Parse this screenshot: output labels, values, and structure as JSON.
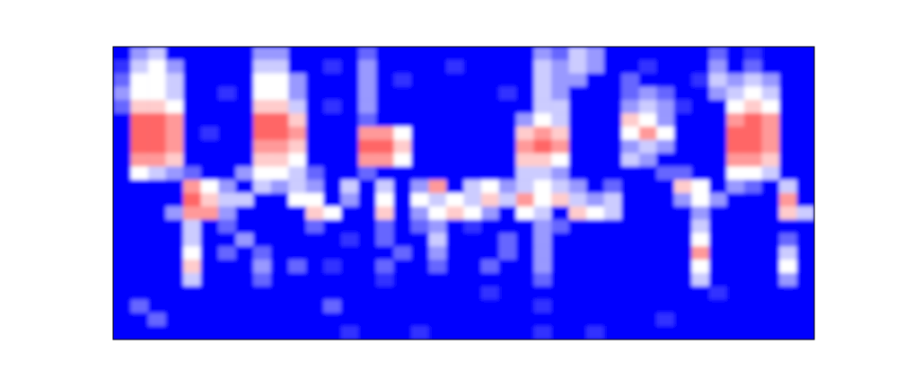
{
  "chart_data": {
    "type": "heatmap",
    "tick_labels": false,
    "clim": [
      0,
      10
    ],
    "cells": [
      [
        0,
        3,
        4,
        0,
        0,
        0,
        0,
        0,
        3,
        3,
        0,
        0,
        0,
        0,
        2,
        0,
        0,
        0,
        0,
        0,
        0,
        0,
        0,
        0,
        3,
        2,
        4,
        3,
        0,
        0,
        0,
        0,
        0,
        0,
        2,
        0,
        1,
        0,
        0,
        0
      ],
      [
        1,
        4,
        5,
        3,
        0,
        0,
        0,
        0,
        4,
        4,
        0,
        0,
        1,
        0,
        3,
        0,
        0,
        0,
        0,
        1,
        0,
        0,
        0,
        0,
        4,
        3,
        4,
        3,
        0,
        0,
        1,
        0,
        0,
        0,
        3,
        0,
        2,
        0,
        0,
        0
      ],
      [
        2,
        5,
        5,
        4,
        0,
        0,
        0,
        0,
        5,
        5,
        3,
        0,
        0,
        0,
        3,
        0,
        1,
        0,
        0,
        0,
        0,
        0,
        0,
        0,
        4,
        3,
        3,
        0,
        0,
        2,
        0,
        0,
        0,
        1,
        4,
        3,
        4,
        3,
        0,
        0
      ],
      [
        3,
        5,
        5,
        4,
        0,
        0,
        1,
        0,
        5,
        5,
        3,
        0,
        0,
        0,
        3,
        0,
        0,
        0,
        0,
        0,
        0,
        0,
        1,
        0,
        4,
        3,
        0,
        0,
        0,
        2,
        3,
        2,
        0,
        0,
        3,
        4,
        5,
        4,
        0,
        0
      ],
      [
        2,
        6,
        6,
        5,
        0,
        0,
        0,
        0,
        6,
        6,
        4,
        0,
        1,
        0,
        3,
        0,
        0,
        0,
        0,
        0,
        0,
        0,
        0,
        0,
        4,
        4,
        0,
        0,
        0,
        3,
        4,
        3,
        1,
        0,
        0,
        5,
        6,
        5,
        0,
        0
      ],
      [
        0,
        8,
        8,
        7,
        0,
        0,
        0,
        0,
        8,
        8,
        6,
        0,
        0,
        0,
        2,
        0,
        0,
        0,
        0,
        0,
        0,
        0,
        0,
        3,
        5,
        4,
        0,
        0,
        0,
        6,
        5,
        3,
        0,
        0,
        0,
        7,
        8,
        7,
        0,
        0
      ],
      [
        0,
        8,
        8,
        7,
        0,
        1,
        0,
        0,
        8,
        8,
        7,
        0,
        0,
        0,
        7,
        7,
        5,
        0,
        0,
        0,
        0,
        0,
        0,
        6,
        7,
        6,
        0,
        0,
        0,
        5,
        7,
        5,
        0,
        0,
        0,
        8,
        8,
        7,
        0,
        0
      ],
      [
        0,
        8,
        8,
        7,
        0,
        0,
        0,
        0,
        7,
        7,
        6,
        0,
        0,
        0,
        8,
        8,
        6,
        0,
        0,
        0,
        0,
        0,
        0,
        7,
        8,
        7,
        0,
        0,
        0,
        3,
        4,
        3,
        0,
        0,
        0,
        8,
        8,
        7,
        0,
        0
      ],
      [
        0,
        7,
        7,
        6,
        0,
        0,
        0,
        0,
        6,
        6,
        5,
        0,
        0,
        0,
        7,
        7,
        5,
        0,
        0,
        0,
        0,
        0,
        0,
        6,
        6,
        5,
        0,
        0,
        0,
        4,
        3,
        0,
        0,
        0,
        0,
        7,
        7,
        6,
        0,
        0
      ],
      [
        0,
        5,
        4,
        3,
        2,
        0,
        0,
        3,
        5,
        5,
        4,
        2,
        0,
        0,
        2,
        0,
        0,
        0,
        0,
        0,
        0,
        0,
        0,
        4,
        4,
        3,
        0,
        0,
        0,
        0,
        0,
        2,
        2,
        0,
        0,
        5,
        5,
        4,
        0,
        0
      ],
      [
        0,
        0,
        0,
        0,
        7,
        5,
        3,
        0,
        4,
        3,
        4,
        3,
        0,
        4,
        0,
        4,
        0,
        3,
        7,
        0,
        4,
        5,
        3,
        4,
        5,
        4,
        3,
        0,
        2,
        0,
        0,
        0,
        6,
        5,
        0,
        3,
        2,
        0,
        4,
        0
      ],
      [
        0,
        0,
        0,
        0,
        8,
        6,
        4,
        4,
        0,
        0,
        5,
        5,
        0,
        3,
        0,
        5,
        0,
        5,
        4,
        5,
        4,
        6,
        4,
        7,
        5,
        6,
        4,
        3,
        4,
        0,
        0,
        0,
        3,
        5,
        3,
        0,
        0,
        0,
        7,
        0
      ],
      [
        0,
        0,
        0,
        3,
        7,
        7,
        3,
        0,
        0,
        0,
        0,
        6,
        5,
        0,
        0,
        6,
        0,
        3,
        5,
        6,
        5,
        3,
        0,
        5,
        4,
        0,
        6,
        5,
        4,
        0,
        0,
        0,
        0,
        3,
        0,
        0,
        0,
        0,
        6,
        4
      ],
      [
        0,
        0,
        0,
        0,
        4,
        0,
        2,
        0,
        0,
        0,
        0,
        2,
        0,
        0,
        0,
        2,
        0,
        2,
        3,
        0,
        1,
        0,
        0,
        0,
        3,
        2,
        0,
        0,
        0,
        0,
        0,
        0,
        0,
        4,
        0,
        0,
        0,
        0,
        0,
        0
      ],
      [
        0,
        0,
        0,
        0,
        4,
        0,
        0,
        3,
        0,
        0,
        0,
        0,
        0,
        1,
        0,
        2,
        0,
        0,
        4,
        0,
        0,
        0,
        2,
        0,
        3,
        0,
        0,
        0,
        0,
        0,
        0,
        0,
        0,
        5,
        0,
        0,
        0,
        0,
        2,
        0
      ],
      [
        0,
        0,
        0,
        0,
        5,
        0,
        2,
        0,
        2,
        0,
        0,
        0,
        0,
        0,
        0,
        0,
        2,
        0,
        3,
        0,
        0,
        0,
        2,
        0,
        3,
        0,
        0,
        0,
        0,
        0,
        0,
        0,
        0,
        7,
        0,
        0,
        0,
        0,
        4,
        0
      ],
      [
        0,
        0,
        0,
        0,
        6,
        0,
        0,
        0,
        3,
        0,
        2,
        0,
        1,
        0,
        0,
        2,
        0,
        0,
        2,
        0,
        0,
        2,
        0,
        0,
        3,
        0,
        0,
        0,
        0,
        0,
        0,
        0,
        0,
        5,
        0,
        0,
        0,
        0,
        5,
        0
      ],
      [
        0,
        0,
        0,
        0,
        4,
        0,
        0,
        0,
        2,
        0,
        0,
        0,
        0,
        0,
        0,
        1,
        0,
        0,
        0,
        0,
        0,
        0,
        0,
        0,
        2,
        0,
        0,
        0,
        0,
        0,
        0,
        0,
        0,
        4,
        0,
        0,
        0,
        0,
        3,
        0
      ],
      [
        0,
        0,
        0,
        0,
        0,
        0,
        0,
        0,
        0,
        0,
        0,
        0,
        0,
        0,
        0,
        0,
        0,
        0,
        0,
        0,
        0,
        1,
        0,
        0,
        0,
        0,
        0,
        0,
        0,
        0,
        0,
        0,
        0,
        0,
        1,
        0,
        0,
        0,
        0,
        0
      ],
      [
        0,
        2,
        0,
        0,
        0,
        0,
        0,
        0,
        0,
        0,
        0,
        0,
        2,
        0,
        0,
        0,
        0,
        0,
        0,
        0,
        0,
        0,
        0,
        0,
        1,
        0,
        0,
        0,
        0,
        0,
        0,
        0,
        0,
        0,
        0,
        0,
        0,
        0,
        0,
        0
      ],
      [
        0,
        0,
        2,
        0,
        0,
        0,
        0,
        0,
        0,
        0,
        0,
        0,
        0,
        0,
        0,
        0,
        0,
        0,
        0,
        0,
        0,
        0,
        0,
        0,
        0,
        0,
        0,
        0,
        0,
        0,
        0,
        1,
        0,
        0,
        0,
        0,
        0,
        0,
        0,
        0
      ],
      [
        0,
        0,
        0,
        0,
        0,
        0,
        0,
        0,
        0,
        0,
        0,
        0,
        0,
        1,
        0,
        0,
        0,
        1,
        0,
        0,
        0,
        0,
        0,
        0,
        1,
        0,
        0,
        1,
        0,
        0,
        0,
        0,
        0,
        0,
        0,
        0,
        0,
        0,
        0,
        0
      ]
    ]
  }
}
